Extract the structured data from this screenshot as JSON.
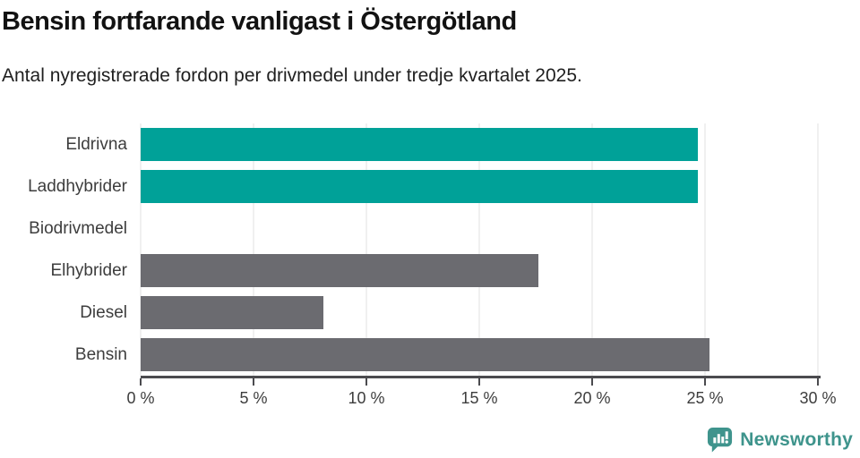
{
  "header": {
    "title": "Bensin fortfarande vanligast i Östergötland",
    "subtitle": "Antal nyregistrerade fordon per drivmedel under tredje kvartalet 2025."
  },
  "chart_data": {
    "type": "bar",
    "orientation": "horizontal",
    "title": "Bensin fortfarande vanligast i Östergötland",
    "subtitle": "Antal nyregistrerade fordon per drivmedel under tredje kvartalet 2025.",
    "categories": [
      "Eldrivna",
      "Laddhybrider",
      "Biodrivmedel",
      "Elhybrider",
      "Diesel",
      "Bensin"
    ],
    "values": [
      24.7,
      24.7,
      0,
      17.6,
      8.1,
      25.2
    ],
    "bar_colors": [
      "#00a198",
      "#00a198",
      "#6b6b70",
      "#6b6b70",
      "#6b6b70",
      "#6b6b70"
    ],
    "xlabel": "",
    "ylabel": "",
    "xlim": [
      0,
      30
    ],
    "x_ticks": [
      {
        "value": 0,
        "label": "0 %"
      },
      {
        "value": 5,
        "label": "5 %"
      },
      {
        "value": 10,
        "label": "10 %"
      },
      {
        "value": 15,
        "label": "15 %"
      },
      {
        "value": 20,
        "label": "20 %"
      },
      {
        "value": 25,
        "label": "25 %"
      },
      {
        "value": 30,
        "label": "30 %"
      }
    ],
    "grid": "vertical",
    "legend": "none"
  },
  "branding": {
    "logo_text": "Newsworthy",
    "icon": "bar-chart-speech-bubble-icon",
    "logo_color": "#3e948c"
  },
  "colors": {
    "teal": "#00a198",
    "gray": "#6b6b70",
    "gridline": "#e2e2e2",
    "axis": "#4b4b4f",
    "label_text": "#3d3d3d",
    "title_text": "#121212",
    "background": "#ffffff"
  }
}
